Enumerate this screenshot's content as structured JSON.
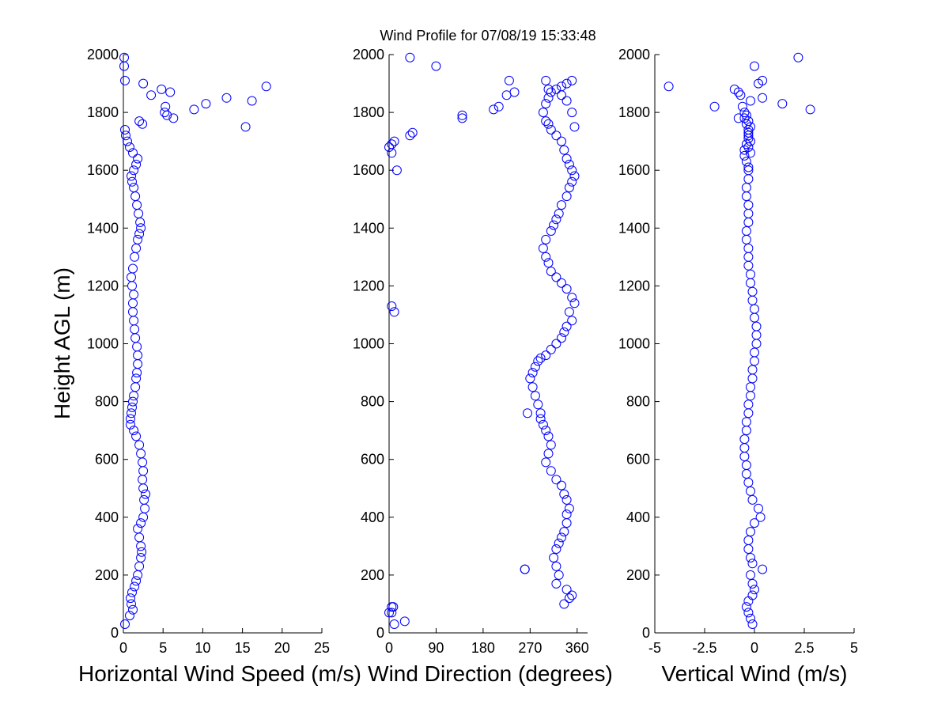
{
  "title": "Wind Profile for  07/08/19 15:33:48",
  "marker_color": "#0000ff",
  "ylabel": "Height AGL (m)",
  "ylim": [
    0,
    2000
  ],
  "yticks": [
    0,
    200,
    400,
    600,
    800,
    1000,
    1200,
    1400,
    1600,
    1800,
    2000
  ],
  "chart_data": [
    {
      "type": "scatter",
      "name": "speed",
      "xlabel": "Horizontal Wind Speed (m/s)",
      "ylabel": "Height AGL (m)",
      "xlim": [
        0,
        25
      ],
      "ylim": [
        0,
        2000
      ],
      "xticks": [
        0,
        5,
        10,
        15,
        20,
        25
      ],
      "xtick_labels": [
        "0",
        "5",
        "10",
        "15",
        "20",
        "25"
      ],
      "x": [
        0.2,
        0.8,
        1.2,
        1.0,
        0.9,
        1.1,
        1.4,
        1.6,
        1.8,
        2.0,
        2.2,
        2.3,
        2.2,
        2.0,
        1.8,
        2.2,
        2.5,
        2.7,
        2.6,
        2.8,
        2.5,
        2.4,
        2.5,
        2.4,
        2.2,
        2.0,
        1.6,
        1.3,
        0.9,
        0.9,
        1.0,
        1.1,
        1.2,
        1.3,
        1.5,
        1.6,
        1.7,
        1.8,
        1.8,
        1.7,
        1.5,
        1.4,
        1.3,
        1.2,
        1.2,
        1.3,
        1.1,
        1.0,
        1.2,
        1.4,
        1.6,
        1.8,
        2.0,
        2.2,
        2.1,
        1.9,
        1.7,
        1.5,
        1.3,
        1.1,
        1.0,
        1.3,
        1.6,
        1.8,
        1.2,
        0.8,
        0.5,
        0.3,
        0.2,
        2.4,
        2.0,
        4.8,
        5.3,
        5.2,
        5.5,
        6.3,
        3.5,
        2.5,
        5.9,
        8.9,
        10.4,
        13.0,
        16.2,
        15.4,
        18.0,
        0.2,
        0.1,
        0.1
      ],
      "y": [
        30,
        60,
        80,
        100,
        120,
        140,
        160,
        180,
        200,
        230,
        260,
        280,
        300,
        330,
        360,
        380,
        400,
        430,
        460,
        480,
        500,
        530,
        560,
        590,
        620,
        650,
        680,
        700,
        720,
        740,
        760,
        780,
        800,
        820,
        850,
        880,
        900,
        930,
        960,
        990,
        1020,
        1050,
        1080,
        1110,
        1140,
        1170,
        1200,
        1230,
        1260,
        1300,
        1330,
        1360,
        1380,
        1400,
        1420,
        1450,
        1480,
        1510,
        1540,
        1560,
        1580,
        1600,
        1620,
        1640,
        1660,
        1680,
        1700,
        1720,
        1740,
        1760,
        1770,
        1880,
        1820,
        1800,
        1790,
        1780,
        1860,
        1900,
        1870,
        1810,
        1830,
        1850,
        1840,
        1750,
        1890,
        1910,
        1960,
        1990
      ]
    },
    {
      "type": "scatter",
      "name": "direction",
      "xlabel": "Wind Direction (degrees)",
      "ylabel": "",
      "xlim": [
        0,
        380
      ],
      "ylim": [
        0,
        2000
      ],
      "xticks": [
        0,
        90,
        180,
        270,
        360
      ],
      "xtick_labels": [
        "0",
        "90",
        "180",
        "270",
        "360"
      ],
      "x": [
        30,
        10,
        0,
        5,
        335,
        345,
        350,
        340,
        320,
        325,
        320,
        260,
        315,
        320,
        325,
        330,
        335,
        340,
        340,
        345,
        340,
        335,
        330,
        320,
        310,
        300,
        305,
        310,
        305,
        300,
        295,
        290,
        290,
        285,
        280,
        275,
        270,
        275,
        280,
        285,
        290,
        300,
        310,
        320,
        330,
        335,
        340,
        350,
        345,
        355,
        350,
        340,
        330,
        320,
        310,
        305,
        300,
        295,
        300,
        310,
        315,
        320,
        325,
        330,
        340,
        345,
        350,
        355,
        350,
        345,
        340,
        335,
        330,
        320,
        310,
        305,
        300,
        295,
        300,
        305,
        310,
        320,
        330,
        340,
        350,
        355,
        350,
        340,
        330,
        300,
        305,
        240,
        225,
        230,
        210,
        200,
        140,
        140,
        90,
        40,
        45,
        40,
        10,
        5,
        0,
        5,
        15,
        10,
        5
      ],
      "y": [
        40,
        30,
        70,
        90,
        100,
        120,
        130,
        150,
        170,
        200,
        230,
        220,
        260,
        290,
        310,
        330,
        350,
        380,
        410,
        430,
        460,
        480,
        510,
        530,
        560,
        590,
        620,
        650,
        680,
        700,
        720,
        740,
        760,
        790,
        820,
        850,
        880,
        900,
        920,
        940,
        950,
        960,
        980,
        1000,
        1020,
        1040,
        1060,
        1080,
        1110,
        1140,
        1160,
        1190,
        1210,
        1230,
        1250,
        1280,
        1300,
        1330,
        1360,
        1390,
        1410,
        1430,
        1450,
        1480,
        1510,
        1540,
        1560,
        1580,
        1600,
        1620,
        1640,
        1670,
        1700,
        1720,
        1740,
        1760,
        1770,
        1800,
        1830,
        1850,
        1870,
        1880,
        1860,
        1900,
        1910,
        1750,
        1800,
        1840,
        1890,
        1910,
        1880,
        1870,
        1860,
        1910,
        1820,
        1810,
        1790,
        1780,
        1960,
        1990,
        1730,
        1720,
        1700,
        1690,
        1680,
        1660,
        1600,
        1110,
        1130
      ],
      "extra_points": [
        [
          8,
          90
        ],
        [
          5,
          70
        ],
        [
          265,
          760
        ],
        [
          260,
          220
        ]
      ]
    },
    {
      "type": "scatter",
      "name": "vertical",
      "xlabel": "Vertical Wind (m/s)",
      "ylabel": "",
      "xlim": [
        -5,
        5
      ],
      "ylim": [
        0,
        2000
      ],
      "xticks": [
        -5,
        -2.5,
        0,
        2.5,
        5
      ],
      "xtick_labels": [
        "-5",
        "-2.5",
        "0",
        "2.5",
        "5"
      ],
      "x": [
        -0.1,
        -0.2,
        -0.3,
        -0.4,
        -0.3,
        -0.1,
        0.0,
        -0.1,
        -0.2,
        0.4,
        -0.1,
        -0.2,
        -0.3,
        -0.3,
        -0.2,
        0.0,
        0.3,
        0.2,
        -0.1,
        -0.2,
        -0.3,
        -0.4,
        -0.4,
        -0.5,
        -0.5,
        -0.5,
        -0.4,
        -0.4,
        -0.3,
        -0.3,
        -0.2,
        -0.2,
        -0.1,
        -0.1,
        0.0,
        0.0,
        0.1,
        0.1,
        0.1,
        0.0,
        0.0,
        -0.1,
        -0.1,
        -0.2,
        -0.2,
        -0.3,
        -0.3,
        -0.3,
        -0.4,
        -0.4,
        -0.3,
        -0.3,
        -0.3,
        -0.4,
        -0.4,
        -0.3,
        -0.3,
        -0.4,
        -0.5,
        -0.5,
        -0.4,
        -0.3,
        -0.3,
        -0.2,
        -0.3,
        -0.4,
        -0.5,
        -0.6,
        -0.5,
        -0.4,
        -0.3,
        -0.3,
        -0.2,
        -0.3,
        -0.2,
        -0.3,
        -0.8,
        -1.0,
        -0.7,
        -0.2,
        0.2,
        0.4,
        1.4,
        2.8,
        -4.3,
        0.4,
        2.2,
        0.0,
        -2.0,
        -0.8
      ],
      "y": [
        30,
        50,
        70,
        90,
        110,
        130,
        150,
        170,
        200,
        220,
        240,
        260,
        290,
        320,
        350,
        380,
        400,
        430,
        460,
        490,
        520,
        550,
        580,
        610,
        640,
        670,
        700,
        730,
        760,
        790,
        820,
        850,
        880,
        910,
        940,
        970,
        1000,
        1030,
        1060,
        1090,
        1120,
        1150,
        1180,
        1210,
        1240,
        1270,
        1300,
        1330,
        1360,
        1390,
        1420,
        1450,
        1480,
        1510,
        1540,
        1570,
        1600,
        1630,
        1650,
        1670,
        1690,
        1710,
        1730,
        1750,
        1770,
        1790,
        1800,
        1820,
        1780,
        1760,
        1740,
        1720,
        1700,
        1680,
        1660,
        1610,
        1870,
        1880,
        1860,
        1840,
        1900,
        1910,
        1830,
        1810,
        1890,
        1850,
        1990,
        1960,
        1820,
        1780
      ]
    }
  ]
}
